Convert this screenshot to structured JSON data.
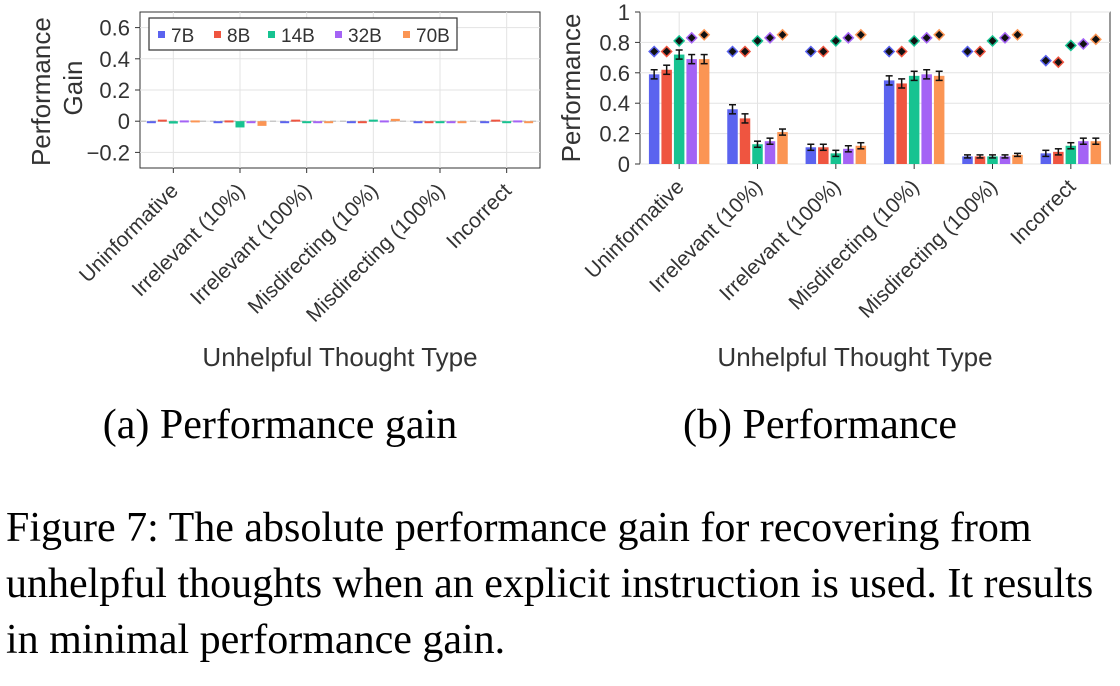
{
  "colors": {
    "7B": "#5b63ef",
    "8B": "#ef5540",
    "14B": "#17c391",
    "32B": "#a463f5",
    "70B": "#fb9554"
  },
  "chart_data": [
    {
      "id": "a",
      "type": "bar",
      "ylabel_lines": [
        "Performance",
        "Gain"
      ],
      "xlabel": "Unhelpful Thought Type",
      "subcaption": "(a) Performance gain",
      "categories": [
        "Uninformative",
        "Irrelevant (10%)",
        "Irrelevant (100%)",
        "Misdirecting (10%)",
        "Misdirecting (100%)",
        "Incorrect"
      ],
      "ylim": [
        -0.3,
        0.7
      ],
      "yticks": [
        -0.2,
        0,
        0.2,
        0.4,
        0.6
      ],
      "ytick_labels": [
        "−0.2",
        "0",
        "0.2",
        "0.4",
        "0.6"
      ],
      "grid": true,
      "legend": {
        "placement": "top-left",
        "entries": [
          "7B",
          "8B",
          "14B",
          "32B",
          "70B"
        ]
      },
      "series": [
        {
          "name": "7B",
          "values": [
            -0.01,
            0.0,
            0.0,
            0.0,
            0.0,
            0.0
          ]
        },
        {
          "name": "8B",
          "values": [
            0.01,
            0.005,
            0.01,
            0.0,
            0.0,
            0.01
          ]
        },
        {
          "name": "14B",
          "values": [
            -0.015,
            -0.04,
            0.0,
            0.01,
            0.0,
            0.0
          ]
        },
        {
          "name": "32B",
          "values": [
            0.005,
            0.0,
            0.0,
            0.005,
            -0.005,
            0.005
          ]
        },
        {
          "name": "70B",
          "values": [
            0.005,
            -0.03,
            0.0,
            0.015,
            0.0,
            0.0
          ]
        }
      ]
    },
    {
      "id": "b",
      "type": "bar",
      "ylabel_lines": [
        "Performance"
      ],
      "xlabel": "Unhelpful Thought Type",
      "subcaption": "(b) Performance",
      "categories": [
        "Uninformative",
        "Irrelevant (10%)",
        "Irrelevant (100%)",
        "Misdirecting (10%)",
        "Misdirecting (100%)",
        "Incorrect"
      ],
      "ylim": [
        0,
        1
      ],
      "yticks": [
        0,
        0.2,
        0.4,
        0.6,
        0.8,
        1
      ],
      "ytick_labels": [
        "0",
        "0.2",
        "0.4",
        "0.6",
        "0.8",
        "1"
      ],
      "grid": true,
      "series": [
        {
          "name": "7B",
          "values": [
            0.59,
            0.36,
            0.11,
            0.55,
            0.05,
            0.07
          ],
          "errors": [
            0.03,
            0.03,
            0.02,
            0.03,
            0.01,
            0.02
          ],
          "reference": [
            0.74,
            0.74,
            0.74,
            0.74,
            0.74,
            0.68
          ]
        },
        {
          "name": "8B",
          "values": [
            0.62,
            0.3,
            0.11,
            0.53,
            0.05,
            0.08
          ],
          "errors": [
            0.03,
            0.03,
            0.02,
            0.03,
            0.01,
            0.02
          ],
          "reference": [
            0.74,
            0.74,
            0.74,
            0.74,
            0.74,
            0.67
          ]
        },
        {
          "name": "14B",
          "values": [
            0.72,
            0.13,
            0.07,
            0.58,
            0.05,
            0.12
          ],
          "errors": [
            0.03,
            0.02,
            0.02,
            0.03,
            0.01,
            0.02
          ],
          "reference": [
            0.81,
            0.81,
            0.81,
            0.81,
            0.81,
            0.78
          ]
        },
        {
          "name": "32B",
          "values": [
            0.69,
            0.15,
            0.1,
            0.59,
            0.05,
            0.15
          ],
          "errors": [
            0.03,
            0.02,
            0.02,
            0.03,
            0.01,
            0.02
          ],
          "reference": [
            0.83,
            0.83,
            0.83,
            0.83,
            0.83,
            0.79
          ]
        },
        {
          "name": "70B",
          "values": [
            0.69,
            0.21,
            0.12,
            0.58,
            0.06,
            0.15
          ],
          "errors": [
            0.03,
            0.02,
            0.02,
            0.03,
            0.01,
            0.02
          ],
          "reference": [
            0.85,
            0.85,
            0.85,
            0.85,
            0.85,
            0.82
          ]
        }
      ]
    }
  ],
  "caption": "Figure 7: The absolute performance gain for recovering from unhelpful thoughts when an explicit instruction is used. It results in minimal performance gain."
}
